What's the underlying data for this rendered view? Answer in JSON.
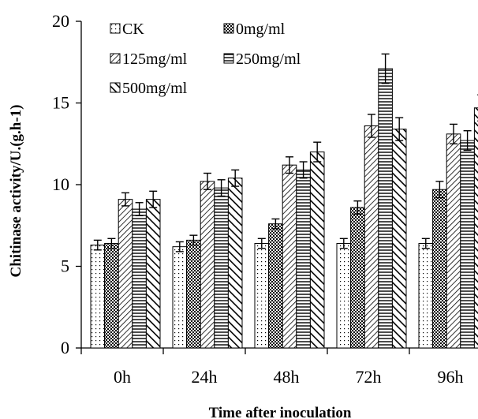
{
  "chart_data": {
    "type": "bar",
    "xlabel": "Time after inoculation",
    "ylabel": "Chitinase activity/U.(g.h-1)",
    "ylim": [
      0,
      20
    ],
    "yticks": [
      0,
      5,
      10,
      15,
      20
    ],
    "categories": [
      "0h",
      "24h",
      "48h",
      "72h",
      "96h"
    ],
    "series": [
      {
        "name": "CK",
        "pattern": "dots",
        "values": [
          6.3,
          6.2,
          6.4,
          6.4,
          6.4
        ],
        "errors": [
          0.3,
          0.3,
          0.3,
          0.3,
          0.3
        ]
      },
      {
        "name": "0mg/ml",
        "pattern": "crosshatch",
        "values": [
          6.4,
          6.6,
          7.6,
          8.6,
          9.7
        ],
        "errors": [
          0.3,
          0.3,
          0.3,
          0.4,
          0.5
        ]
      },
      {
        "name": "125mg/ml",
        "pattern": "backslash",
        "values": [
          9.1,
          10.2,
          11.2,
          13.6,
          13.1
        ],
        "errors": [
          0.4,
          0.5,
          0.5,
          0.7,
          0.6
        ]
      },
      {
        "name": "250mg/ml",
        "pattern": "horizontal",
        "values": [
          8.5,
          9.8,
          10.9,
          17.1,
          12.7
        ],
        "errors": [
          0.4,
          0.5,
          0.5,
          0.9,
          0.6
        ]
      },
      {
        "name": "500mg/ml",
        "pattern": "diagonal-bold",
        "values": [
          9.1,
          10.4,
          12.0,
          13.4,
          14.7
        ],
        "errors": [
          0.5,
          0.5,
          0.6,
          0.7,
          0.8
        ]
      }
    ],
    "grid": false,
    "legend": "top-left"
  }
}
